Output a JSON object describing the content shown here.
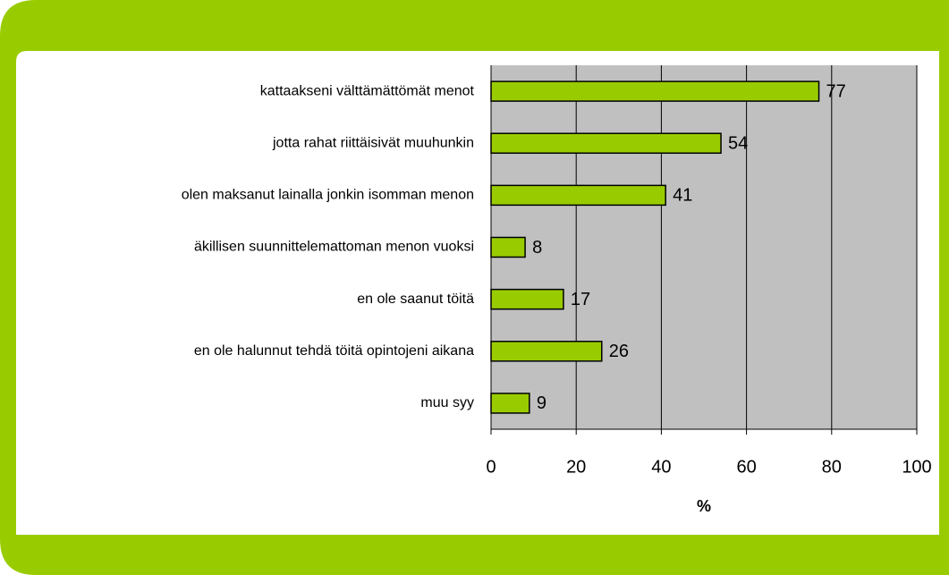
{
  "chart_data": {
    "type": "bar",
    "orientation": "horizontal",
    "categories": [
      "kattaakseni välttämättömät menot",
      "jotta rahat riittäisivät muuhunkin",
      "olen maksanut lainalla jonkin isomman menon",
      "äkillisen suunnittelemattoman menon vuoksi",
      "en ole saanut töitä",
      "en ole halunnut tehdä töitä opintojeni aikana",
      "muu syy"
    ],
    "values": [
      77,
      54,
      41,
      8,
      17,
      26,
      9
    ],
    "color": "#99cc00",
    "xlim": [
      0,
      100
    ],
    "xticks": [
      0,
      20,
      40,
      60,
      80,
      100
    ],
    "x_label": "%",
    "grid": true
  }
}
